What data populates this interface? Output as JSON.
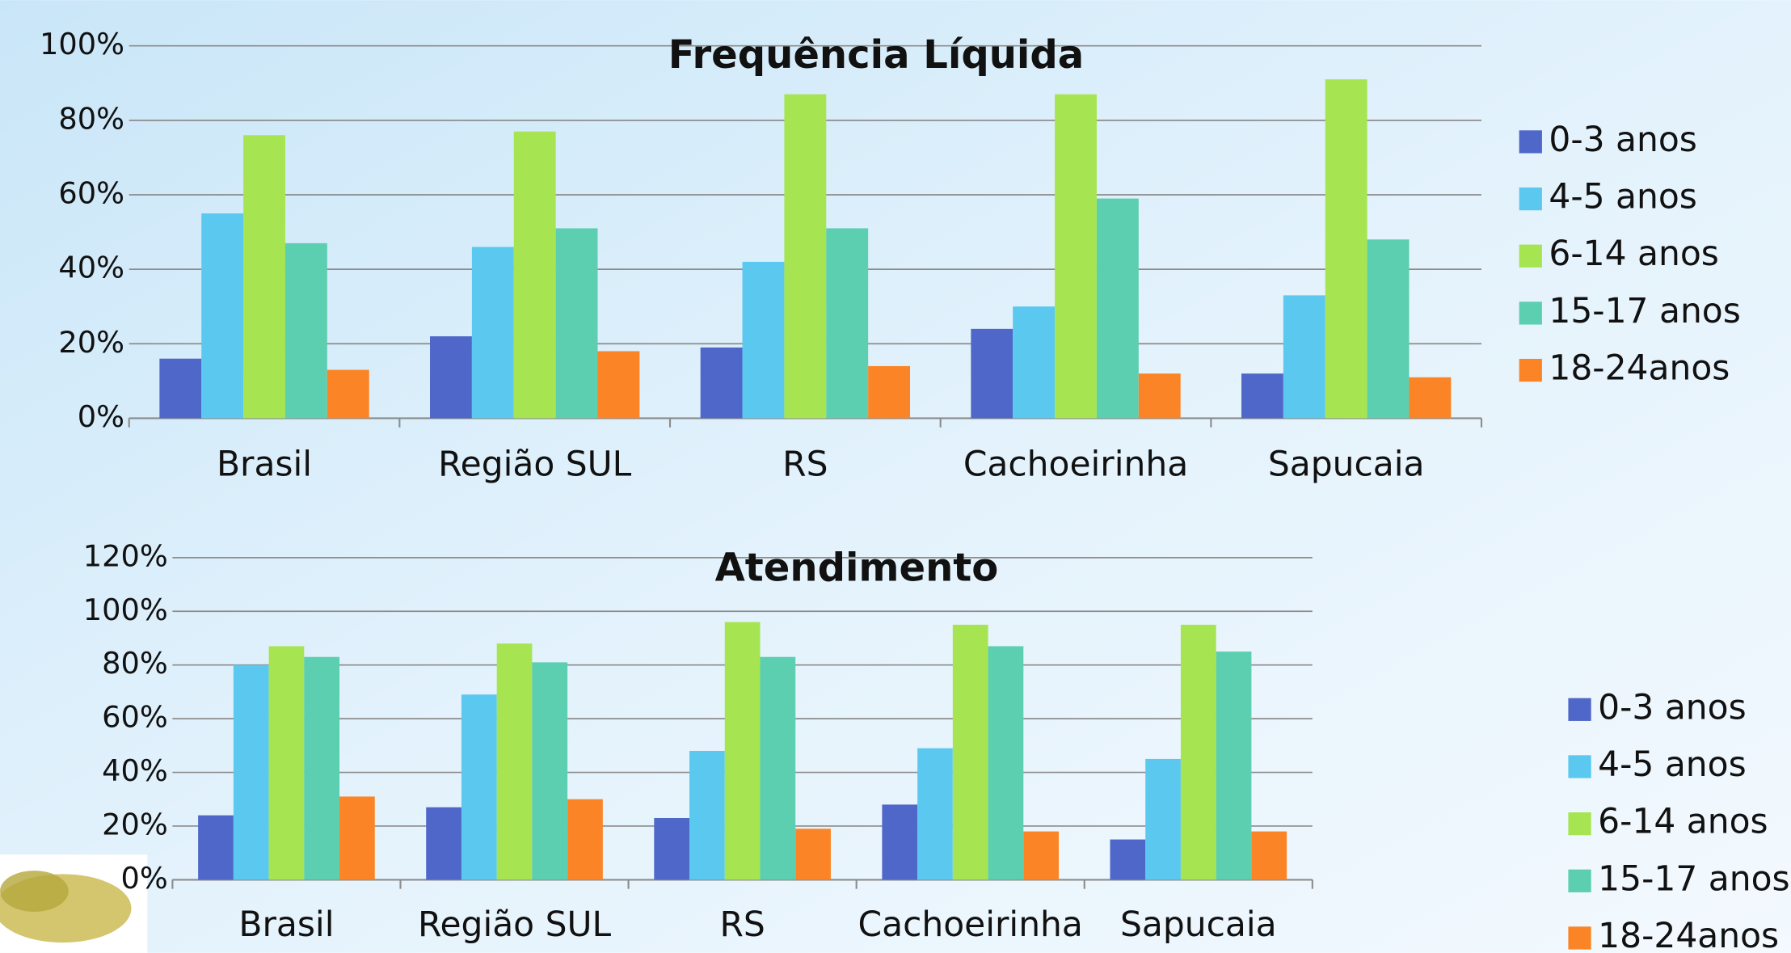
{
  "chart_data": [
    {
      "type": "bar",
      "title": "Frequência Líquida",
      "categories": [
        "Brasil",
        "Região SUL",
        "RS",
        "Cachoeirinha",
        "Sapucaia"
      ],
      "series": [
        {
          "name": "0-3 anos",
          "color": "#4f67c8",
          "values": [
            16,
            22,
            19,
            24,
            12
          ]
        },
        {
          "name": "4-5 anos",
          "color": "#5bc8f0",
          "values": [
            55,
            46,
            42,
            30,
            33
          ]
        },
        {
          "name": "6-14 anos",
          "color": "#a6e551",
          "values": [
            76,
            77,
            87,
            87,
            91
          ]
        },
        {
          "name": "15-17 anos",
          "color": "#5ccfb0",
          "values": [
            47,
            51,
            51,
            59,
            48
          ]
        },
        {
          "name": "18-24anos",
          "color": "#fb8526",
          "values": [
            13,
            18,
            14,
            12,
            11
          ]
        }
      ],
      "ylim": [
        0,
        100
      ],
      "yticks": [
        {
          "value": 0,
          "label": "0%"
        },
        {
          "value": 20,
          "label": "20%"
        },
        {
          "value": 40,
          "label": "40%"
        },
        {
          "value": 60,
          "label": "60%"
        },
        {
          "value": 80,
          "label": "80%"
        },
        {
          "value": 100,
          "label": "100%"
        }
      ],
      "grid": true,
      "legend": "right"
    },
    {
      "type": "bar",
      "title": "Atendimento",
      "categories": [
        "Brasil",
        "Região SUL",
        "RS",
        "Cachoeirinha",
        "Sapucaia"
      ],
      "series": [
        {
          "name": "0-3 anos",
          "color": "#4f67c8",
          "values": [
            24,
            27,
            23,
            28,
            15
          ]
        },
        {
          "name": "4-5 anos",
          "color": "#5bc8f0",
          "values": [
            80,
            69,
            48,
            49,
            45
          ]
        },
        {
          "name": "6-14 anos",
          "color": "#a6e551",
          "values": [
            87,
            88,
            96,
            95,
            95
          ]
        },
        {
          "name": "15-17 anos",
          "color": "#5ccfb0",
          "values": [
            83,
            81,
            83,
            87,
            85
          ]
        },
        {
          "name": "18-24anos",
          "color": "#fb8526",
          "values": [
            31,
            30,
            19,
            18,
            18
          ]
        }
      ],
      "ylim": [
        0,
        120
      ],
      "yticks": [
        {
          "value": 0,
          "label": "0%"
        },
        {
          "value": 20,
          "label": "20%"
        },
        {
          "value": 40,
          "label": "40%"
        },
        {
          "value": 60,
          "label": "60%"
        },
        {
          "value": 80,
          "label": "80%"
        },
        {
          "value": 100,
          "label": "100%"
        },
        {
          "value": 120,
          "label": "120%"
        }
      ],
      "grid": true,
      "legend": "right"
    }
  ]
}
